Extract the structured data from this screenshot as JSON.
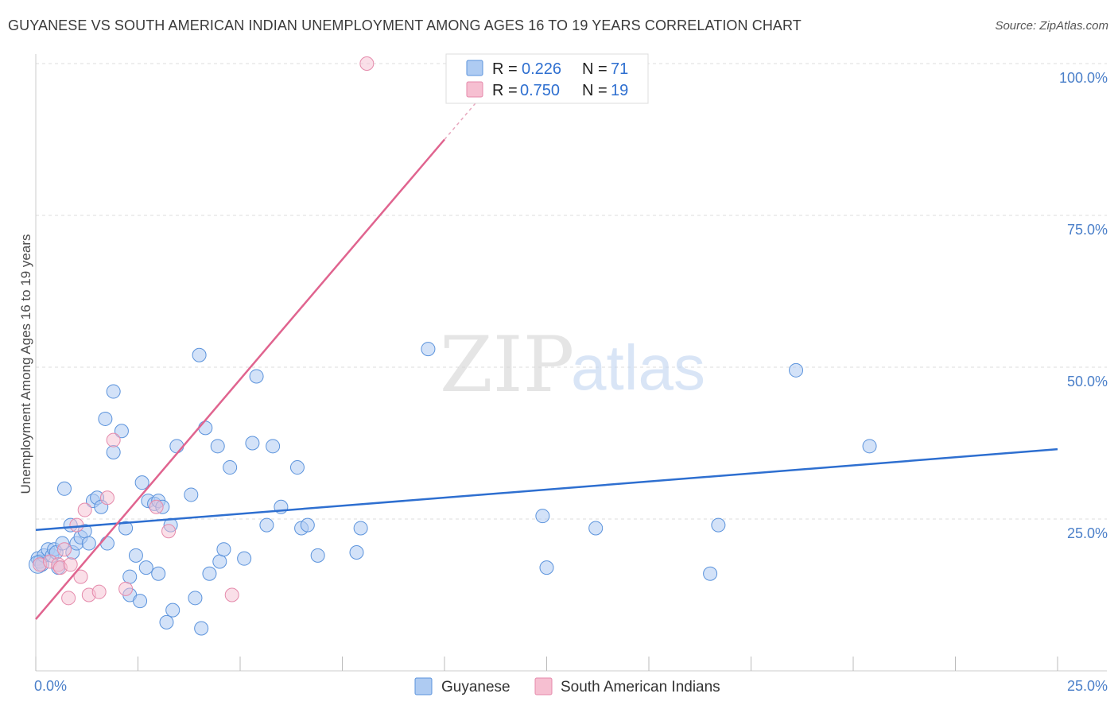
{
  "header": {
    "title": "GUYANESE VS SOUTH AMERICAN INDIAN UNEMPLOYMENT AMONG AGES 16 TO 19 YEARS CORRELATION CHART",
    "source": "Source: ZipAtlas.com"
  },
  "watermark": {
    "zip": "ZIP",
    "atlas": "atlas"
  },
  "colors": {
    "blue": "#5b93dc",
    "blue_fill": "#aecbf2",
    "blue_line": "#2e6fd0",
    "pink": "#e58aab",
    "pink_fill": "#f6bfd1",
    "pink_line": "#e0648f",
    "tick_text": "#4a7fc9",
    "grid": "#dddddd"
  },
  "legend": {
    "rows": [
      {
        "r_label": "R =",
        "r_value": "0.226",
        "n_label": "N =",
        "n_value": "71"
      },
      {
        "r_label": "R =",
        "r_value": "0.750",
        "n_label": "N =",
        "n_value": "19"
      }
    ]
  },
  "chart_data": {
    "type": "scatter",
    "title": "GUYANESE VS SOUTH AMERICAN INDIAN UNEMPLOYMENT AMONG AGES 16 TO 19 YEARS CORRELATION CHART",
    "xlabel": "",
    "ylabel": "Unemployment Among Ages 16 to 19 years",
    "xlim": [
      0,
      25
    ],
    "ylim": [
      0,
      100
    ],
    "x_tick_labels": [
      "0.0%",
      "25.0%"
    ],
    "y_ticks": [
      25,
      50,
      75,
      100
    ],
    "y_tick_labels": [
      "25.0%",
      "50.0%",
      "75.0%",
      "100.0%"
    ],
    "grid": true,
    "legend_placement": "top-center",
    "series": [
      {
        "name": "Guyanese",
        "r": 0.226,
        "n": 71,
        "trend": {
          "x0": 0,
          "y0": 23.2,
          "x1": 25,
          "y1": 36.5
        },
        "points": [
          [
            0.05,
            18.5
          ],
          [
            0.1,
            18
          ],
          [
            0.15,
            17.5
          ],
          [
            0.2,
            19
          ],
          [
            0.3,
            20
          ],
          [
            0.4,
            19
          ],
          [
            0.45,
            20
          ],
          [
            0.5,
            19.5
          ],
          [
            0.55,
            17
          ],
          [
            0.65,
            21
          ],
          [
            0.7,
            30
          ],
          [
            0.85,
            24
          ],
          [
            0.9,
            19.5
          ],
          [
            1.0,
            21
          ],
          [
            1.1,
            22
          ],
          [
            1.2,
            23
          ],
          [
            1.3,
            21
          ],
          [
            1.4,
            28
          ],
          [
            1.5,
            28.5
          ],
          [
            1.6,
            27
          ],
          [
            1.7,
            41.5
          ],
          [
            1.75,
            21
          ],
          [
            1.9,
            46
          ],
          [
            1.9,
            36
          ],
          [
            2.1,
            39.5
          ],
          [
            2.2,
            23.5
          ],
          [
            2.3,
            15.5
          ],
          [
            2.3,
            12.5
          ],
          [
            2.45,
            19
          ],
          [
            2.55,
            11.5
          ],
          [
            2.6,
            31
          ],
          [
            2.7,
            17
          ],
          [
            2.75,
            28
          ],
          [
            2.9,
            27.5
          ],
          [
            3.0,
            28
          ],
          [
            3.0,
            16
          ],
          [
            3.1,
            27
          ],
          [
            3.2,
            8
          ],
          [
            3.3,
            24
          ],
          [
            3.35,
            10
          ],
          [
            3.45,
            37
          ],
          [
            3.8,
            29
          ],
          [
            3.9,
            12
          ],
          [
            4.0,
            52
          ],
          [
            4.05,
            7
          ],
          [
            4.15,
            40
          ],
          [
            4.25,
            16
          ],
          [
            4.45,
            37
          ],
          [
            4.5,
            18
          ],
          [
            4.6,
            20
          ],
          [
            4.75,
            33.5
          ],
          [
            5.1,
            18.5
          ],
          [
            5.3,
            37.5
          ],
          [
            5.4,
            48.5
          ],
          [
            5.65,
            24
          ],
          [
            5.8,
            37
          ],
          [
            6.0,
            27
          ],
          [
            6.4,
            33.5
          ],
          [
            6.5,
            23.5
          ],
          [
            6.65,
            24
          ],
          [
            6.9,
            19
          ],
          [
            7.85,
            19.5
          ],
          [
            7.95,
            23.5
          ],
          [
            9.6,
            53
          ],
          [
            12.4,
            25.5
          ],
          [
            12.5,
            17
          ],
          [
            13.7,
            23.5
          ],
          [
            16.5,
            16
          ],
          [
            16.7,
            24
          ],
          [
            18.6,
            49.5
          ],
          [
            20.4,
            37
          ]
        ]
      },
      {
        "name": "South American Indians",
        "r": 0.75,
        "n": 19,
        "trend": {
          "x0": 0,
          "y0": 8.5,
          "x1": 10.0,
          "y1": 87.5
        },
        "trend_dashed_to": {
          "x": 10.8,
          "y": 93.8
        },
        "points": [
          [
            0.1,
            17.5
          ],
          [
            0.35,
            18
          ],
          [
            0.55,
            17.5
          ],
          [
            0.6,
            17
          ],
          [
            0.7,
            20
          ],
          [
            0.8,
            12
          ],
          [
            0.85,
            17.5
          ],
          [
            1.0,
            24
          ],
          [
            1.1,
            15.5
          ],
          [
            1.2,
            26.5
          ],
          [
            1.3,
            12.5
          ],
          [
            1.55,
            13
          ],
          [
            1.75,
            28.5
          ],
          [
            1.9,
            38
          ],
          [
            2.2,
            13.5
          ],
          [
            2.95,
            27
          ],
          [
            3.25,
            23
          ],
          [
            4.8,
            12.5
          ],
          [
            8.1,
            100
          ]
        ]
      }
    ]
  },
  "bottom_legend": {
    "items": [
      "Guyanese",
      "South American Indians"
    ]
  }
}
